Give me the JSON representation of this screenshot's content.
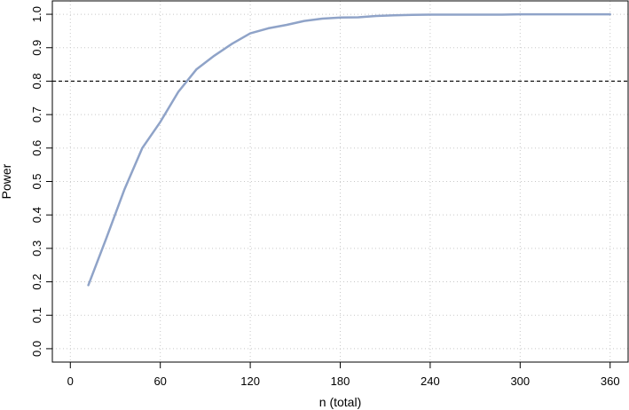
{
  "chart_data": {
    "type": "line",
    "title": "",
    "xlabel": "n (total)",
    "ylabel": "Power",
    "xlim": [
      -12,
      372
    ],
    "ylim": [
      -0.04,
      1.04
    ],
    "x_ticks": [
      "0",
      "60",
      "120",
      "180",
      "240",
      "300",
      "360"
    ],
    "y_ticks": [
      "0.0",
      "0.1",
      "0.2",
      "0.3",
      "0.4",
      "0.5",
      "0.6",
      "0.7",
      "0.8",
      "0.9",
      "1.0"
    ],
    "grid": true,
    "reference_line": {
      "y": 0.8,
      "style": "dashed",
      "color": "#000000"
    },
    "series": [
      {
        "color": "#8fa3c8",
        "x": [
          12,
          24,
          36,
          48,
          60,
          72,
          84,
          96,
          108,
          120,
          132,
          144,
          156,
          168,
          180,
          192,
          204,
          216,
          228,
          240,
          252,
          264,
          276,
          288,
          300,
          312,
          324,
          336,
          348,
          360
        ],
        "y": [
          0.19,
          0.33,
          0.475,
          0.6,
          0.678,
          0.768,
          0.835,
          0.876,
          0.912,
          0.943,
          0.958,
          0.968,
          0.98,
          0.987,
          0.99,
          0.991,
          0.995,
          0.997,
          0.998,
          0.999,
          0.999,
          0.999,
          0.999,
          0.999,
          1.0,
          1.0,
          1.0,
          1.0,
          1.0,
          1.0
        ]
      }
    ]
  }
}
